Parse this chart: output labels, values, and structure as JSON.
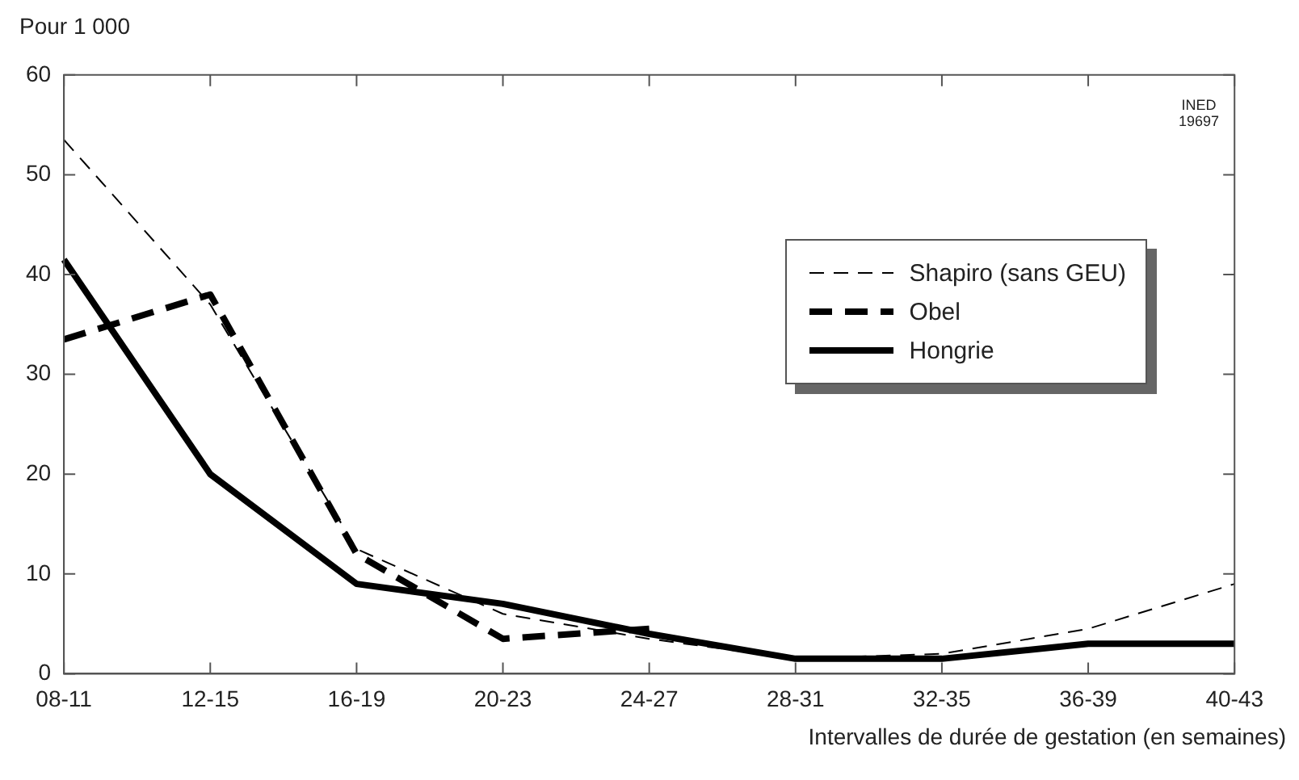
{
  "chart_data": {
    "type": "line",
    "ylabel": "Pour 1 000",
    "xlabel": "Intervalles de durée de gestation (en semaines)",
    "categories": [
      "08-11",
      "12-15",
      "16-19",
      "20-23",
      "24-27",
      "28-31",
      "32-35",
      "36-39",
      "40-43"
    ],
    "series": [
      {
        "name": "Shapiro (sans GEU)",
        "color": "#000000",
        "line_style": "dashed",
        "values": [
          53.5,
          37,
          12.5,
          6,
          3.5,
          1.5,
          2,
          4.5,
          9
        ]
      },
      {
        "name": "Obel",
        "color": "#000000",
        "line_style": "dashed",
        "values": [
          33.5,
          38,
          12,
          3.5,
          4.5,
          null,
          null,
          null,
          null
        ]
      },
      {
        "name": "Hongrie",
        "color": "#000000",
        "line_style": "solid",
        "values": [
          41.5,
          20,
          9,
          7,
          4,
          1.5,
          1.5,
          3,
          3
        ]
      }
    ],
    "ylim": [
      0,
      60
    ],
    "yticks": [
      0,
      10,
      20,
      30,
      40,
      50,
      60
    ],
    "grid": false,
    "legend": "right",
    "annotations": [
      "INED 19697"
    ]
  }
}
